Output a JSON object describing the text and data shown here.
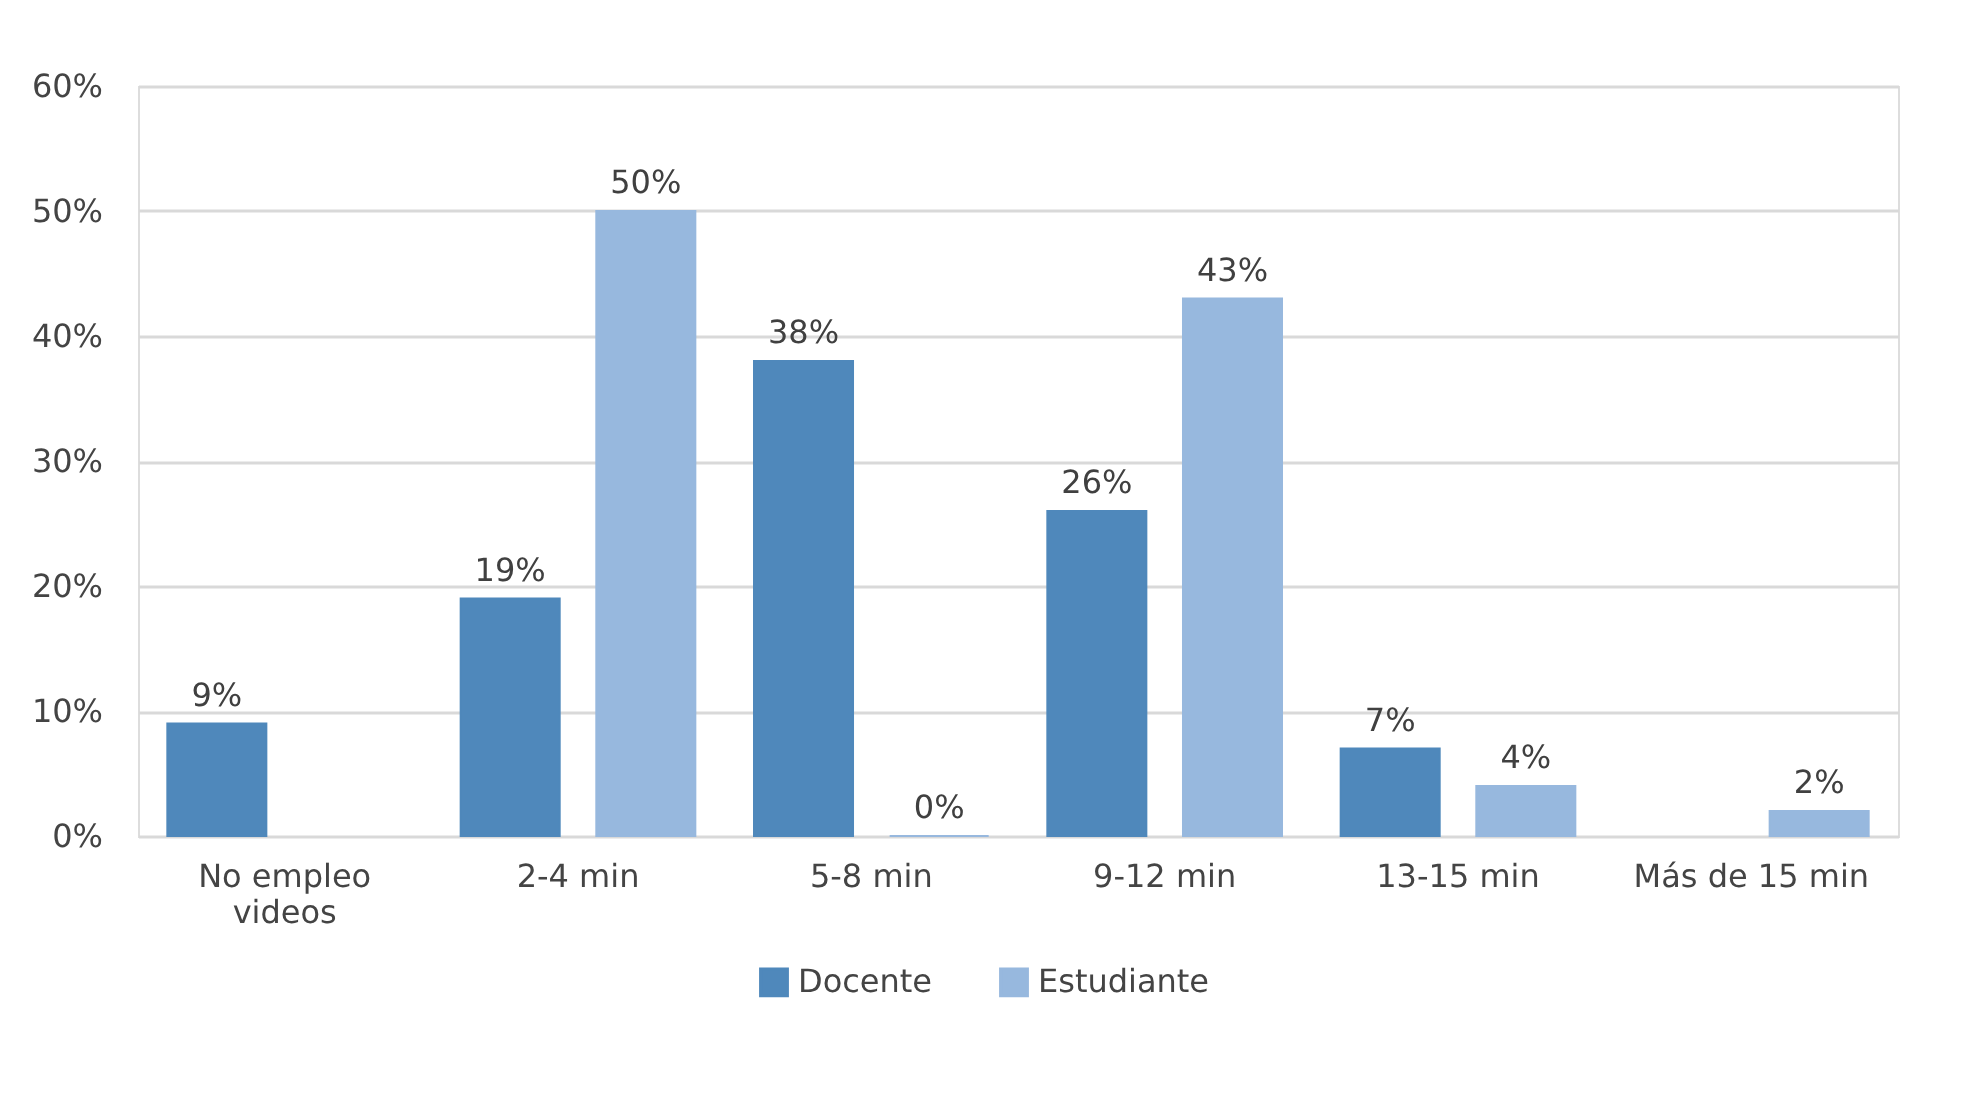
{
  "chart_data": {
    "type": "bar",
    "categories": [
      "No empleo videos",
      "2-4 min",
      "5-8 min",
      "9-12 min",
      "13-15 min",
      "Más de 15 min"
    ],
    "series": [
      {
        "name": "Docente",
        "color": "#4f88bb",
        "values": [
          9,
          19,
          38,
          26,
          7,
          null
        ],
        "value_labels": [
          "9%",
          "19%",
          "38%",
          "26%",
          "7%",
          null
        ]
      },
      {
        "name": "Estudiante",
        "color": "#97b8de",
        "values": [
          null,
          50,
          0,
          43,
          4,
          2
        ],
        "value_labels": [
          null,
          "50%",
          "0%",
          "43%",
          "4%",
          "2%"
        ]
      }
    ],
    "ylim": [
      0,
      60
    ],
    "yticks": [
      {
        "value": 0,
        "label": "0%"
      },
      {
        "value": 10,
        "label": "10%"
      },
      {
        "value": 20,
        "label": "20%"
      },
      {
        "value": 30,
        "label": "30%"
      },
      {
        "value": 40,
        "label": "40%"
      },
      {
        "value": 50,
        "label": "50%"
      },
      {
        "value": 60,
        "label": "60%"
      }
    ],
    "grid": "y",
    "legend": "bottom"
  }
}
